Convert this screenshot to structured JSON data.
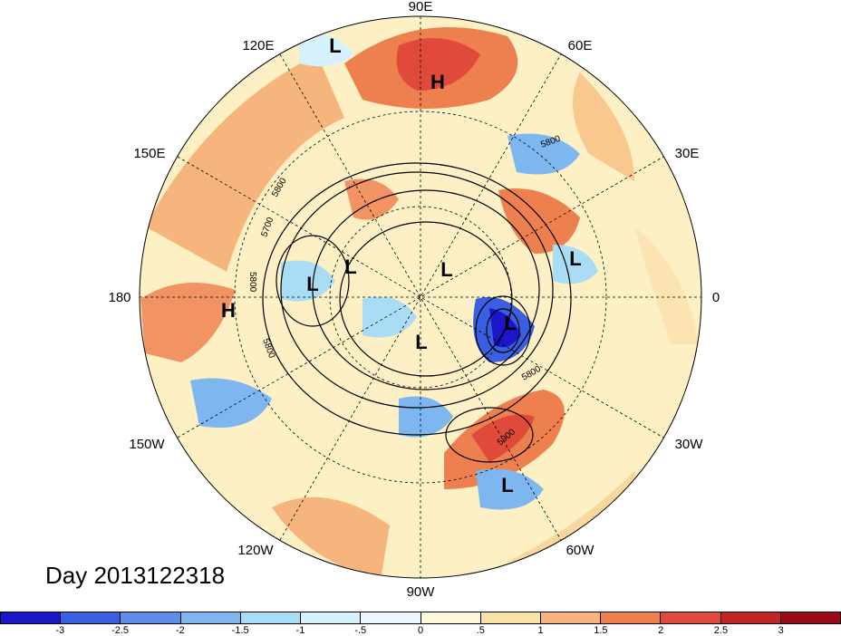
{
  "timestamp_label": "Day 2013122318",
  "longitude_labels": {
    "top": "90E",
    "upper_left": "120E",
    "upper_right": "60E",
    "left_upper": "150E",
    "right_upper": "30E",
    "left": "180",
    "right": "0",
    "left_lower": "150W",
    "right_lower": "30W",
    "lower_left": "120W",
    "lower_right": "60W",
    "bottom": "90W"
  },
  "pressure_centers": [
    {
      "type": "L"
    },
    {
      "type": "H"
    },
    {
      "type": "L"
    },
    {
      "type": "L"
    },
    {
      "type": "L"
    },
    {
      "type": "L"
    },
    {
      "type": "H"
    },
    {
      "type": "L"
    },
    {
      "type": "L"
    },
    {
      "type": "L"
    }
  ],
  "contour_labels": [
    "5800",
    "5800",
    "5700",
    "5800",
    "5800",
    "5800",
    "5900"
  ],
  "colorbar": {
    "ticks": [
      "-3",
      "-2.5",
      "-2",
      "-1.5",
      "-1",
      "-.5",
      "0",
      ".5",
      "1",
      "1.5",
      "2",
      "2.5",
      "3"
    ],
    "colors": [
      "#1b16c9",
      "#3a5fe0",
      "#5b8fe8",
      "#7eb6ef",
      "#a9dcf5",
      "#d5f1fb",
      "#eaf8fd",
      "#fdf8d8",
      "#f9e2a5",
      "#f6b57c",
      "#ee8050",
      "#e04a3a",
      "#c42328",
      "#9a0b18"
    ]
  }
}
